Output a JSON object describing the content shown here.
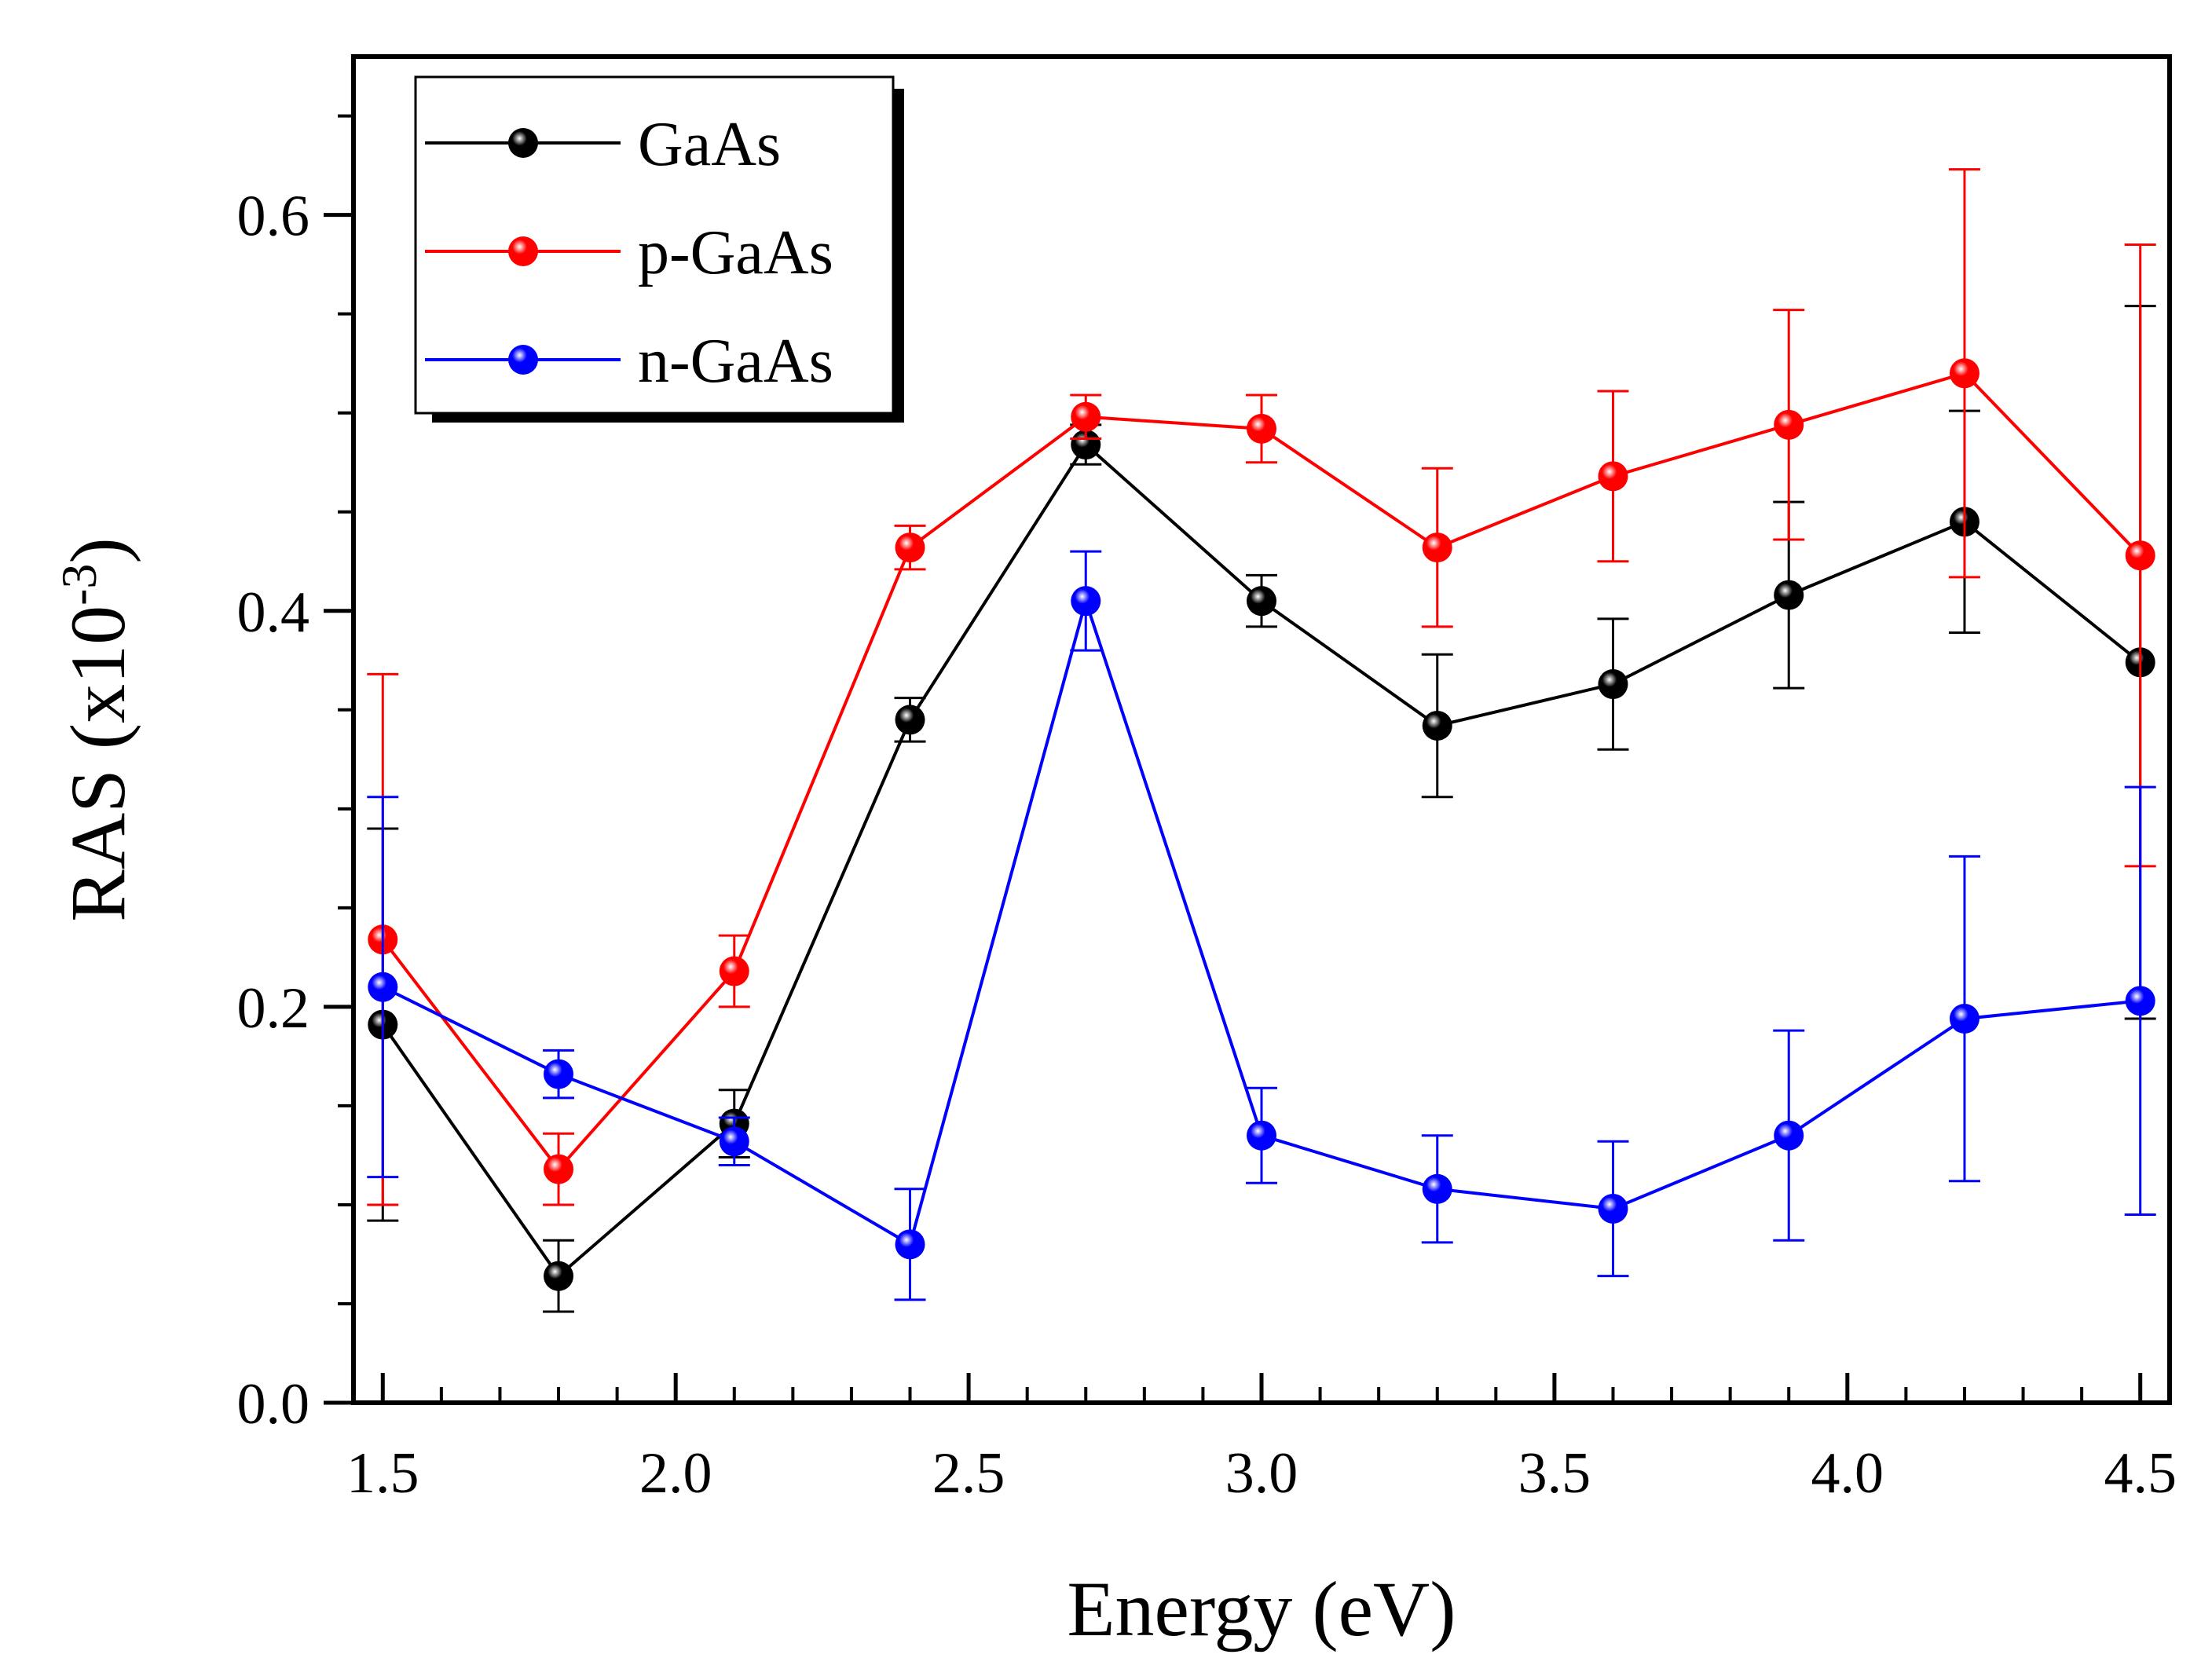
{
  "chart_data": {
    "type": "line",
    "title": "",
    "xlabel": "Energy (eV)",
    "ylabel": "RAS (x10",
    "ylabel_sup": "-3",
    "ylabel_close": ")",
    "xlim": [
      1.45,
      4.55
    ],
    "ylim": [
      0.0,
      0.68
    ],
    "x_ticks": [
      1.5,
      2.0,
      2.5,
      3.0,
      3.5,
      4.0,
      4.5
    ],
    "x_tick_labels": [
      "1.5",
      "2.0",
      "2.5",
      "3.0",
      "3.5",
      "4.0",
      "4.5"
    ],
    "x_minor_ticks": [
      1.6,
      1.7,
      1.8,
      1.9,
      2.1,
      2.2,
      2.3,
      2.4,
      2.6,
      2.7,
      2.8,
      2.9,
      3.1,
      3.2,
      3.3,
      3.4,
      3.6,
      3.7,
      3.8,
      3.9,
      4.1,
      4.2,
      4.3,
      4.4
    ],
    "y_ticks": [
      0.0,
      0.2,
      0.4,
      0.6
    ],
    "y_tick_labels": [
      "0.0",
      "0.2",
      "0.4",
      "0.6"
    ],
    "y_minor_ticks": [
      0.05,
      0.1,
      0.15,
      0.25,
      0.3,
      0.35,
      0.45,
      0.5,
      0.55,
      0.65
    ],
    "legend_position": "top-left",
    "grid": false,
    "x": [
      1.5,
      1.8,
      2.1,
      2.4,
      2.7,
      3.0,
      3.3,
      3.6,
      3.9,
      4.2,
      4.5
    ],
    "series": [
      {
        "name": "GaAs",
        "color": "#000000",
        "values": [
          0.191,
          0.064,
          0.141,
          0.345,
          0.484,
          0.405,
          0.342,
          0.363,
          0.408,
          0.445,
          0.374
        ],
        "errors": [
          0.099,
          0.018,
          0.017,
          0.011,
          0.01,
          0.013,
          0.036,
          0.033,
          0.047,
          0.056,
          0.18
        ]
      },
      {
        "name": "p-GaAs",
        "color": "#ff0000",
        "values": [
          0.234,
          0.118,
          0.218,
          0.432,
          0.498,
          0.492,
          0.432,
          0.468,
          0.494,
          0.52,
          0.428
        ],
        "errors": [
          0.134,
          0.018,
          0.018,
          0.011,
          0.011,
          0.017,
          0.04,
          0.043,
          0.058,
          0.103,
          0.157
        ]
      },
      {
        "name": "n-GaAs",
        "color": "#0000ff",
        "values": [
          0.21,
          0.166,
          0.132,
          0.08,
          0.405,
          0.135,
          0.108,
          0.098,
          0.135,
          0.194,
          0.203
        ],
        "errors": [
          0.096,
          0.012,
          0.012,
          0.028,
          0.025,
          0.024,
          0.027,
          0.034,
          0.053,
          0.082,
          0.108
        ]
      }
    ]
  }
}
